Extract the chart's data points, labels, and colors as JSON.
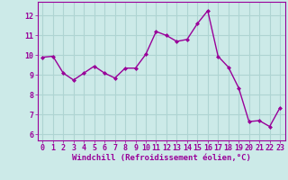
{
  "x": [
    0,
    1,
    2,
    3,
    4,
    5,
    6,
    7,
    8,
    9,
    10,
    11,
    12,
    13,
    14,
    15,
    16,
    17,
    18,
    19,
    20,
    21,
    22,
    23
  ],
  "y": [
    9.9,
    9.95,
    9.1,
    8.75,
    9.1,
    9.45,
    9.1,
    8.85,
    9.35,
    9.35,
    10.05,
    11.2,
    11.0,
    10.7,
    10.8,
    11.6,
    12.25,
    9.95,
    9.4,
    8.35,
    6.65,
    6.7,
    6.4,
    7.35
  ],
  "line_color": "#990099",
  "marker": "D",
  "marker_size": 2.0,
  "bg_color": "#cceae8",
  "grid_color": "#aed4d2",
  "xlabel": "Windchill (Refroidissement éolien,°C)",
  "xlabel_color": "#990099",
  "tick_color": "#990099",
  "xlim": [
    -0.5,
    23.5
  ],
  "ylim": [
    5.7,
    12.7
  ],
  "yticks": [
    6,
    7,
    8,
    9,
    10,
    11,
    12
  ],
  "xticks": [
    0,
    1,
    2,
    3,
    4,
    5,
    6,
    7,
    8,
    9,
    10,
    11,
    12,
    13,
    14,
    15,
    16,
    17,
    18,
    19,
    20,
    21,
    22,
    23
  ],
  "tick_fontsize": 6.0,
  "xlabel_fontsize": 6.5,
  "linewidth": 1.0
}
